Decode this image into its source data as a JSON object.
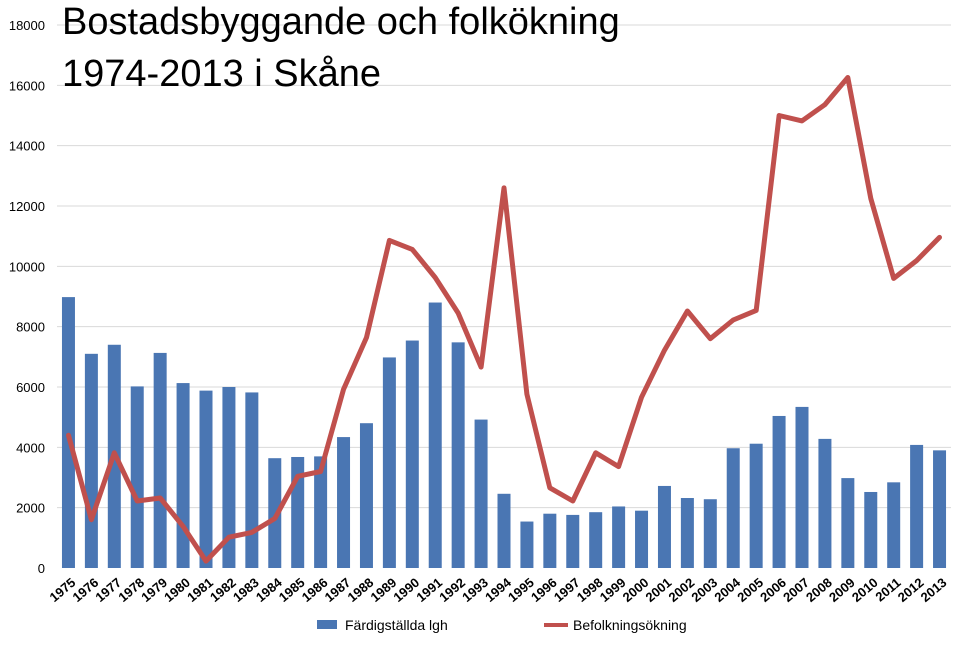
{
  "chart_data": {
    "type": "bar",
    "title_lines": [
      "Bostadsbyggande och folkökning",
      "1974-2013 i Skåne"
    ],
    "categories": [
      "1975",
      "1976",
      "1977",
      "1978",
      "1979",
      "1980",
      "1981",
      "1982",
      "1983",
      "1984",
      "1985",
      "1986",
      "1987",
      "1988",
      "1989",
      "1990",
      "1991",
      "1992",
      "1993",
      "1994",
      "1995",
      "1996",
      "1997",
      "1998",
      "1999",
      "2000",
      "2001",
      "2002",
      "2003",
      "2004",
      "2005",
      "2006",
      "2007",
      "2008",
      "2009",
      "2010",
      "2011",
      "2012",
      "2013"
    ],
    "ylim": [
      0,
      18000
    ],
    "yticks": [
      "0",
      "2000",
      "4000",
      "6000",
      "8000",
      "10000",
      "12000",
      "14000",
      "16000",
      "18000"
    ],
    "grid": true,
    "legend_position": "bottom",
    "series": [
      {
        "name": "Färdigställda lgh",
        "type": "bar",
        "color": "#4a76b3",
        "values": [
          8980,
          7100,
          7400,
          6020,
          7130,
          6130,
          5880,
          6000,
          5820,
          3640,
          3680,
          3700,
          4340,
          4800,
          6980,
          7540,
          8800,
          7480,
          4920,
          2460,
          1540,
          1800,
          1760,
          1850,
          2040,
          1900,
          2720,
          2320,
          2280,
          3970,
          4120,
          5040,
          5340,
          4280,
          2980,
          2520,
          2840,
          4080,
          3900
        ]
      },
      {
        "name": "Befolkningsökning",
        "type": "line",
        "color": "#c0504d",
        "values": [
          4400,
          1600,
          3820,
          2220,
          2320,
          1380,
          230,
          1020,
          1180,
          1640,
          3040,
          3200,
          5920,
          7640,
          10860,
          10560,
          9630,
          8450,
          6660,
          12600,
          5760,
          2660,
          2220,
          3820,
          3360,
          5660,
          7220,
          8520,
          7600,
          8220,
          8540,
          15000,
          14820,
          15360,
          16260,
          12250,
          9600,
          10190,
          10960
        ]
      }
    ]
  }
}
